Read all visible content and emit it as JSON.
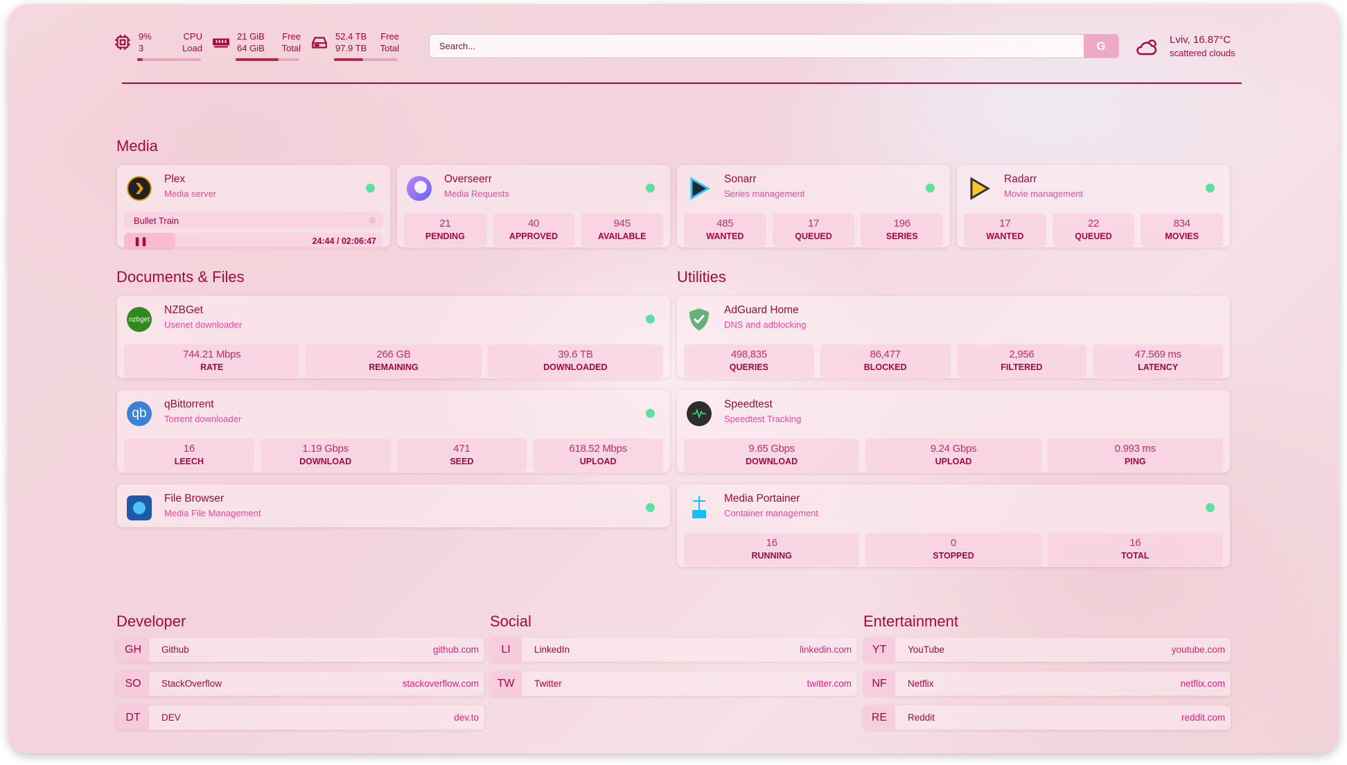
{
  "status": {
    "cpu": {
      "icon": "cpu-icon",
      "value": "9%",
      "sub": "3",
      "label": "CPU",
      "sublabel": "Load",
      "fill": 9
    },
    "ram": {
      "icon": "memory-icon",
      "value": "21 GiB",
      "sub": "64 GiB",
      "label": "Free",
      "sublabel": "Total",
      "fill": 67
    },
    "disk": {
      "icon": "disk-icon",
      "value": "52.4 TB",
      "sub": "97.9 TB",
      "label": "Free",
      "sublabel": "Total",
      "fill": 46
    }
  },
  "search": {
    "placeholder": "Search...",
    "button": "G"
  },
  "weather": {
    "icon": "cloud-sun-icon",
    "location": "Lviv, 16.87°C",
    "desc": "scattered clouds"
  },
  "sections": {
    "media": "Media",
    "docs": "Documents & Files",
    "utilities": "Utilities",
    "developer": "Developer",
    "social": "Social",
    "entertainment": "Entertainment"
  },
  "media": [
    {
      "name": "Plex",
      "desc": "Media server",
      "icon": "plex-icon",
      "status": "online",
      "now_playing": {
        "title": "Bullet Train",
        "time": "24:44 / 02:06:47",
        "state": "paused"
      }
    },
    {
      "name": "Overseerr",
      "desc": "Media Requests",
      "icon": "overseerr-icon",
      "status": "online",
      "stats": [
        {
          "v": "21",
          "l": "PENDING"
        },
        {
          "v": "40",
          "l": "APPROVED"
        },
        {
          "v": "945",
          "l": "AVAILABLE"
        }
      ]
    },
    {
      "name": "Sonarr",
      "desc": "Series management",
      "icon": "sonarr-icon",
      "status": "online",
      "stats": [
        {
          "v": "485",
          "l": "WANTED"
        },
        {
          "v": "17",
          "l": "QUEUED"
        },
        {
          "v": "196",
          "l": "SERIES"
        }
      ]
    },
    {
      "name": "Radarr",
      "desc": "Movie management",
      "icon": "radarr-icon",
      "status": "online",
      "stats": [
        {
          "v": "17",
          "l": "WANTED"
        },
        {
          "v": "22",
          "l": "QUEUED"
        },
        {
          "v": "834",
          "l": "MOVIES"
        }
      ]
    }
  ],
  "docs": [
    {
      "name": "NZBGet",
      "desc": "Usenet downloader",
      "icon": "nzbget-icon",
      "icon_text": "nzbget",
      "status": "online",
      "stats": [
        {
          "v": "744.21 Mbps",
          "l": "RATE"
        },
        {
          "v": "266 GB",
          "l": "REMAINING"
        },
        {
          "v": "39.6 TB",
          "l": "DOWNLOADED"
        }
      ]
    },
    {
      "name": "qBittorrent",
      "desc": "Torrent downloader",
      "icon": "qbittorrent-icon",
      "icon_text": "qb",
      "status": "online",
      "stats": [
        {
          "v": "16",
          "l": "LEECH"
        },
        {
          "v": "1.19 Gbps",
          "l": "DOWNLOAD"
        },
        {
          "v": "471",
          "l": "SEED"
        },
        {
          "v": "618.52 Mbps",
          "l": "UPLOAD"
        }
      ]
    },
    {
      "name": "File Browser",
      "desc": "Media File Management",
      "icon": "filebrowser-icon",
      "status": "online",
      "stats": []
    }
  ],
  "utilities": [
    {
      "name": "AdGuard Home",
      "desc": "DNS and adblocking",
      "icon": "adguard-shield-icon",
      "stats": [
        {
          "v": "498,835",
          "l": "QUERIES"
        },
        {
          "v": "86,477",
          "l": "BLOCKED"
        },
        {
          "v": "2,956",
          "l": "FILTERED"
        },
        {
          "v": "47.569 ms",
          "l": "LATENCY"
        }
      ]
    },
    {
      "name": "Speedtest",
      "desc": "Speedtest Tracking",
      "icon": "speedtest-icon",
      "stats": [
        {
          "v": "9.65 Gbps",
          "l": "DOWNLOAD"
        },
        {
          "v": "9.24 Gbps",
          "l": "UPLOAD"
        },
        {
          "v": "0.993 ms",
          "l": "PING"
        }
      ]
    },
    {
      "name": "Media Portainer",
      "desc": "Container management",
      "icon": "portainer-icon",
      "status": "online",
      "stats": [
        {
          "v": "16",
          "l": "RUNNING"
        },
        {
          "v": "0",
          "l": "STOPPED"
        },
        {
          "v": "16",
          "l": "TOTAL"
        }
      ]
    }
  ],
  "bookmarks": {
    "developer": [
      {
        "abbr": "GH",
        "name": "Github",
        "url": "github.com"
      },
      {
        "abbr": "SO",
        "name": "StackOverflow",
        "url": "stackoverflow.com"
      },
      {
        "abbr": "DT",
        "name": "DEV",
        "url": "dev.to"
      }
    ],
    "social": [
      {
        "abbr": "LI",
        "name": "LinkedIn",
        "url": "linkedin.com"
      },
      {
        "abbr": "TW",
        "name": "Twitter",
        "url": "twitter.com"
      }
    ],
    "entertainment": [
      {
        "abbr": "YT",
        "name": "YouTube",
        "url": "youtube.com"
      },
      {
        "abbr": "NF",
        "name": "Netflix",
        "url": "netflix.com"
      },
      {
        "abbr": "RE",
        "name": "Reddit",
        "url": "reddit.com"
      }
    ]
  },
  "colors": {
    "accent": "#a3093f",
    "subtitle": "#ec4a9b",
    "online": "#5fe0a3",
    "link": "#e2207f"
  }
}
